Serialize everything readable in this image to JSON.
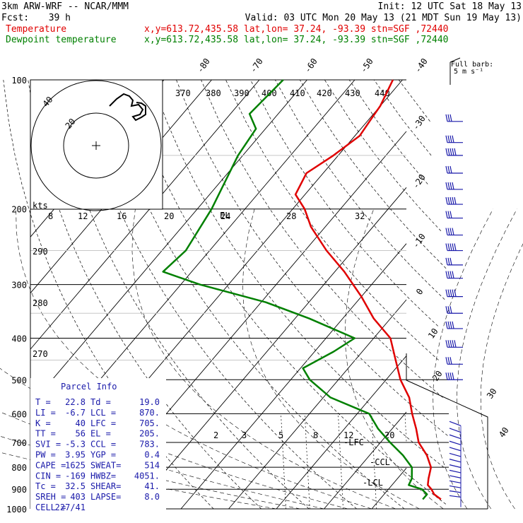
{
  "header": {
    "model": "3km ARW-WRF -- NCAR/MMM",
    "init": "Init: 12 UTC Sat 18 May 13",
    "fcst_label": "Fcst:",
    "fcst_value": "39 h",
    "valid": "Valid: 03 UTC Mon 20 May 13 (21 MDT Sun 19 May 13)"
  },
  "legend": {
    "temperature_label": "Temperature",
    "dewpoint_label": "Dewpoint temperature",
    "location": "x,y=613.72,435.58   lat,lon= 37.24, -93.39   stn=SGF ,72440",
    "temperature_color": "#e00000",
    "dewpoint_color": "#008000"
  },
  "barb_legend": {
    "title": "Full barb:",
    "value": "5 m s⁻¹"
  },
  "parcel_info": {
    "title": "Parcel Info",
    "rows": [
      [
        "T  =",
        "22.8",
        "Td =",
        "19.0"
      ],
      [
        "LI =",
        "-6.7",
        "LCL =",
        "870."
      ],
      [
        "K  =",
        "40",
        "LFC =",
        "705."
      ],
      [
        "TT =",
        "56",
        "EL  =",
        "205."
      ],
      [
        "SVI =",
        "-5.3",
        "CCL =",
        "783."
      ],
      [
        "PW =",
        "3.95",
        "YGP =",
        "0.4"
      ],
      [
        "CAPE =",
        "1625",
        "SWEAT=",
        "514"
      ],
      [
        "CIN =",
        "-169",
        "HWBZ=",
        "4051."
      ],
      [
        "Tc =",
        "32.5",
        "SHEAR=",
        "41."
      ],
      [
        "SREH =",
        "403",
        "LAPSE=",
        "8.0"
      ],
      [
        "CELL =",
        "227/41",
        "",
        ""
      ]
    ]
  },
  "level_labels": {
    "lfc": "-LFC",
    "ccl": "-CCL",
    "lcl": "-LCL",
    "el": "EL"
  },
  "hodograph": {
    "units_label": "kts",
    "ring_labels": [
      "40",
      "20"
    ],
    "wind_ticks": [
      "8",
      "12",
      "16",
      "20",
      "24",
      "28",
      "32"
    ]
  },
  "chart_data": {
    "type": "line",
    "title": "",
    "xlabel": "",
    "ylabel": "",
    "y_axis_pressure_ticks": [
      "100",
      "200",
      "300",
      "400",
      "500",
      "600",
      "700",
      "800",
      "900",
      "1000"
    ],
    "isotherm_labels_top": [
      "-80",
      "-70",
      "-60",
      "-50",
      "-40"
    ],
    "isotherm_labels_right": [
      "-30",
      "-20",
      "-10",
      "0",
      "10",
      "20",
      "30",
      "40"
    ],
    "potential_temperature_labels": [
      "370",
      "380",
      "390",
      "400",
      "410",
      "420",
      "430",
      "440"
    ],
    "equivalent_potential_temperature_labels": [
      "290",
      "280",
      "270"
    ],
    "mixing_ratio_labels": [
      "2",
      "3",
      "5",
      "8",
      "12",
      "20"
    ],
    "series": [
      {
        "name": "Temperature",
        "pressure_hpa": [
          100,
          115,
          125,
          135,
          150,
          165,
          185,
          200,
          220,
          250,
          280,
          320,
          360,
          400,
          450,
          500,
          550,
          600,
          650,
          700,
          750,
          800,
          850,
          880,
          900,
          925,
          950
        ],
        "temperature_c": [
          -62.0,
          -60.0,
          -59.5,
          -59.0,
          -61.0,
          -63.5,
          -62.0,
          -57.5,
          -53.0,
          -45.5,
          -38.0,
          -30.0,
          -23.5,
          -16.5,
          -11.5,
          -7.0,
          -2.0,
          1.5,
          5.0,
          8.0,
          12.0,
          15.0,
          16.5,
          17.5,
          19.0,
          20.5,
          22.8
        ]
      },
      {
        "name": "Dewpoint temperature",
        "pressure_hpa": [
          100,
          120,
          130,
          150,
          200,
          250,
          280,
          300,
          330,
          360,
          400,
          430,
          470,
          500,
          550,
          600,
          650,
          700,
          750,
          800,
          850,
          880,
          900,
          925,
          950
        ],
        "dewpoint_c": [
          -85.0,
          -86.0,
          -82.0,
          -81.0,
          -77.0,
          -75.0,
          -76.0,
          -66.0,
          -49.0,
          -37.0,
          -24.0,
          -26.0,
          -29.5,
          -26.0,
          -18.5,
          -7.5,
          -3.0,
          2.0,
          7.0,
          11.0,
          13.0,
          13.5,
          17.0,
          19.0,
          19.0
        ]
      }
    ],
    "wind_barbs_present": true
  }
}
